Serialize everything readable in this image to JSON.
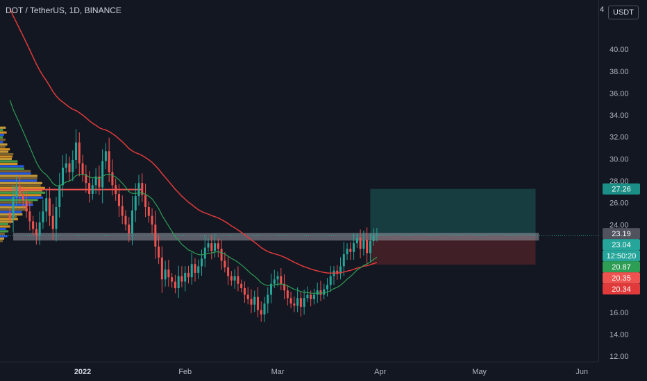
{
  "header": {
    "title": "DOT / TetherUS, 1D, BINANCE",
    "currency": "USDT",
    "corner_number": "4"
  },
  "colors": {
    "background": "#131722",
    "up": "#26a69a",
    "down": "#ef5350",
    "ema_fast": "#2e9e55",
    "ema_slow": "#e03a3a",
    "target_zone": "#1b4b4b",
    "stop_zone": "#4a2127",
    "support_band": "#9598a1"
  },
  "chart_data": {
    "type": "candlestick",
    "symbol": "DOT / TetherUS",
    "interval": "1D",
    "exchange": "BINANCE",
    "y_range": [
      11.5,
      44.5
    ],
    "y_ticks": [
      12,
      14,
      16,
      18,
      20,
      22,
      24,
      26,
      28,
      30,
      32,
      34,
      36,
      38,
      40
    ],
    "x_ticks": [
      {
        "label": "2022",
        "day": 22,
        "bold": true
      },
      {
        "label": "Feb",
        "day": 53,
        "bold": false
      },
      {
        "label": "Mar",
        "day": 81,
        "bold": false
      },
      {
        "label": "Apr",
        "day": 112,
        "bold": false
      },
      {
        "label": "May",
        "day": 142,
        "bold": false
      },
      {
        "label": "Jun",
        "day": 173,
        "bold": false
      }
    ],
    "x_range_days": [
      -3,
      178
    ],
    "candles_start_day": 0,
    "closes": [
      24.5,
      26.5,
      27.5,
      26.8,
      26.2,
      25.2,
      24.3,
      23.6,
      23.0,
      24.2,
      25.2,
      26.4,
      24.8,
      23.6,
      25.6,
      27.6,
      29.2,
      29.6,
      28.8,
      29.9,
      31.5,
      29.6,
      28.6,
      27.8,
      26.8,
      27.6,
      28.4,
      27.4,
      29.8,
      30.7,
      28.8,
      27.6,
      26.8,
      25.7,
      24.8,
      24.0,
      23.2,
      25.3,
      26.6,
      27.8,
      26.7,
      25.6,
      24.8,
      24.0,
      22.0,
      21.0,
      19.0,
      19.9,
      19.2,
      18.8,
      18.2,
      19.3,
      18.8,
      19.6,
      19.2,
      20.4,
      19.6,
      20.2,
      20.9,
      21.9,
      22.3,
      21.6,
      22.3,
      21.8,
      20.7,
      20.1,
      19.3,
      18.9,
      19.3,
      18.6,
      18.2,
      17.6,
      17.2,
      16.7,
      17.4,
      16.2,
      15.8,
      16.8,
      17.6,
      18.6,
      19.0,
      19.3,
      18.6,
      18.0,
      17.3,
      16.8,
      16.6,
      17.3,
      16.5,
      17.3,
      17.6,
      17.2,
      17.6,
      18.0,
      17.6,
      18.1,
      18.5,
      19.3,
      19.8,
      19.5,
      20.2,
      21.3,
      21.8,
      21.5,
      22.3,
      22.8,
      21.8,
      22.6,
      21.4,
      22.5,
      23.0,
      23.04
    ],
    "support_level": 22.9,
    "volume_profile_poc": 27.2,
    "position": {
      "entry": 23.04,
      "target": 27.26,
      "stop": 20.35,
      "start_day": 109,
      "end_day": 159
    },
    "price_labels": [
      {
        "value": "27.26",
        "price": 27.26,
        "color": "#1b8f85"
      },
      {
        "value": "23.19",
        "price": 23.19,
        "color": "#50535e"
      },
      {
        "value": "23.04",
        "price": 23.04,
        "color": "#26a69a"
      },
      {
        "value": "20.87",
        "price": 20.87,
        "color": "#2e9e55"
      },
      {
        "value": "20.35",
        "price": 20.35,
        "color": "#ef5350"
      },
      {
        "value": "20.34",
        "price": 20.34,
        "color": "#e03a3a"
      }
    ],
    "countdown": "12:50:20"
  }
}
